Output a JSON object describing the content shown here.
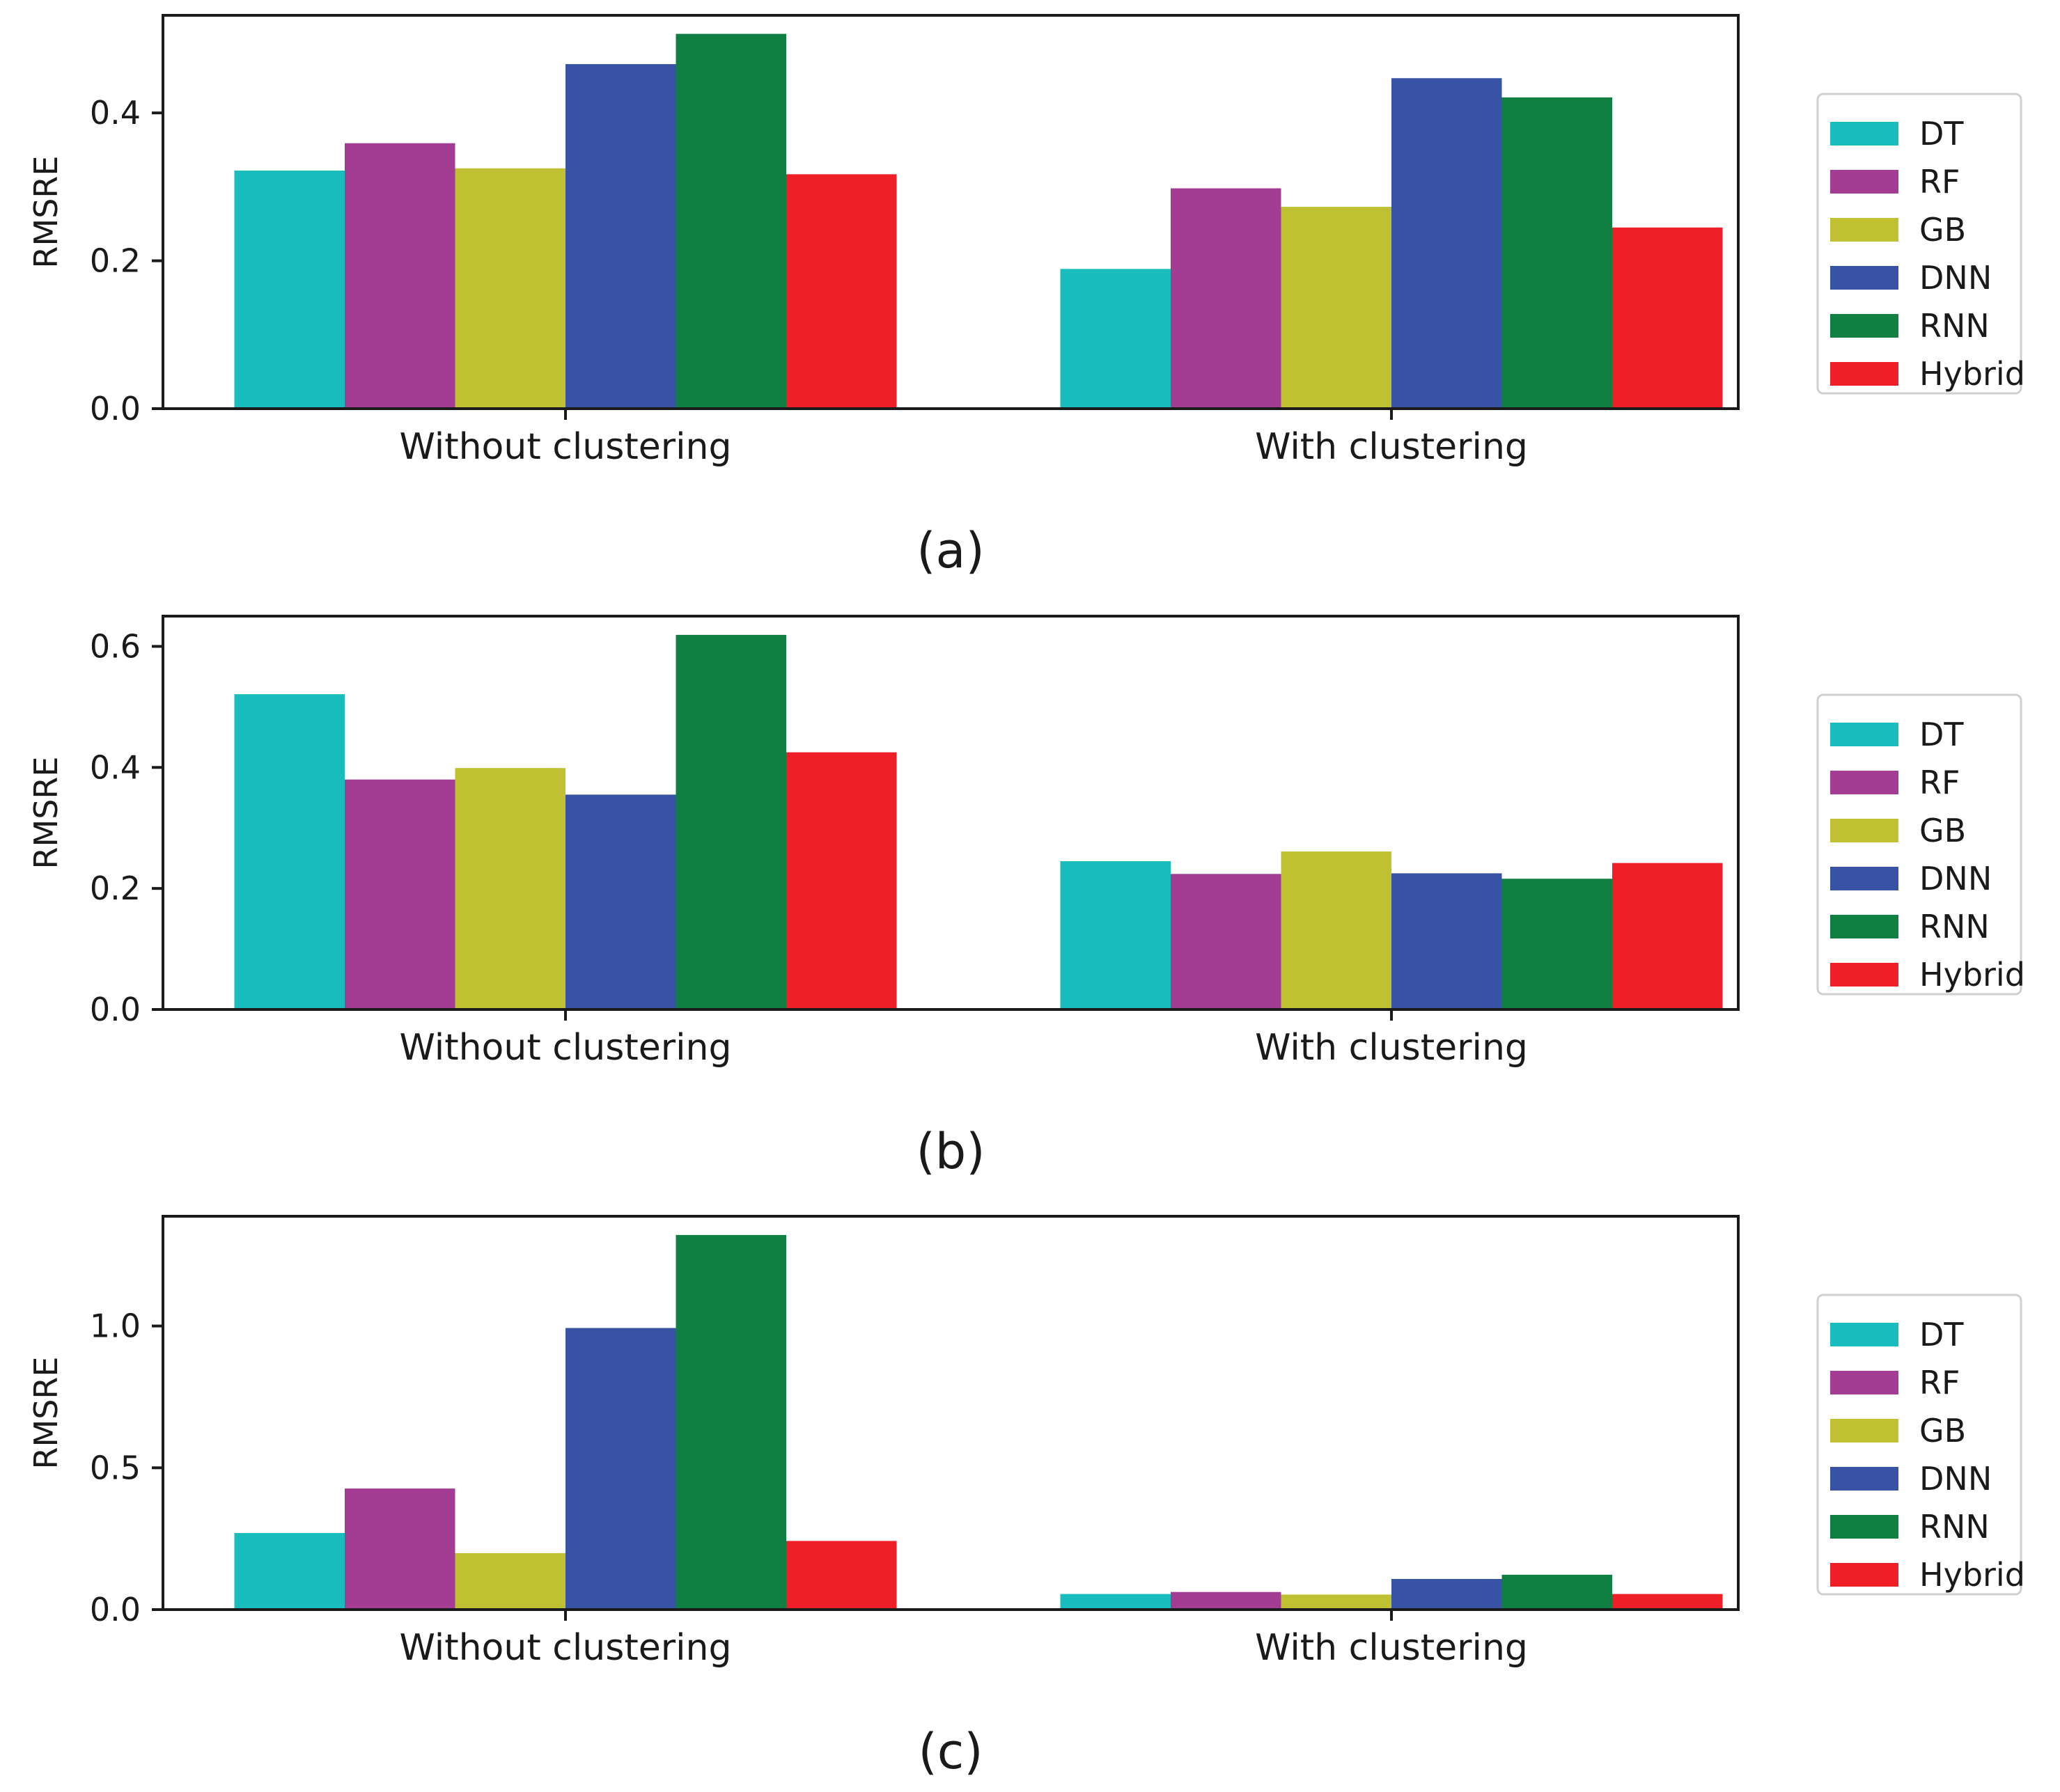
{
  "colors": {
    "DT": "#19bdbd",
    "RF": "#a33d93",
    "GB": "#bfc032",
    "DNN": "#3853a3",
    "RNN": "#0f8041",
    "Hybrid": "#ee1f26"
  },
  "chart_data": [
    {
      "type": "bar",
      "panel_label": "(a)",
      "ylabel": "RMSRE",
      "categories": [
        "Without clustering",
        "With clustering"
      ],
      "ylim": [
        0,
        0.532
      ],
      "yticks": [
        0.0,
        0.2,
        0.4
      ],
      "ytick_labels": [
        "0.0",
        "0.2",
        "0.4"
      ],
      "legend_position": "right",
      "series": [
        {
          "name": "DT",
          "values": [
            0.322,
            0.189
          ]
        },
        {
          "name": "RF",
          "values": [
            0.359,
            0.298
          ]
        },
        {
          "name": "GB",
          "values": [
            0.325,
            0.273
          ]
        },
        {
          "name": "DNN",
          "values": [
            0.466,
            0.447
          ]
        },
        {
          "name": "RNN",
          "values": [
            0.507,
            0.421
          ]
        },
        {
          "name": "Hybrid",
          "values": [
            0.317,
            0.245
          ]
        }
      ]
    },
    {
      "type": "bar",
      "panel_label": "(b)",
      "ylabel": "RMSRE",
      "categories": [
        "Without clustering",
        "With clustering"
      ],
      "ylim": [
        0,
        0.65
      ],
      "yticks": [
        0.0,
        0.2,
        0.4,
        0.6
      ],
      "ytick_labels": [
        "0.0",
        "0.2",
        "0.4",
        "0.6"
      ],
      "legend_position": "right",
      "series": [
        {
          "name": "DT",
          "values": [
            0.521,
            0.245
          ]
        },
        {
          "name": "RF",
          "values": [
            0.38,
            0.224
          ]
        },
        {
          "name": "GB",
          "values": [
            0.399,
            0.261
          ]
        },
        {
          "name": "DNN",
          "values": [
            0.355,
            0.225
          ]
        },
        {
          "name": "RNN",
          "values": [
            0.619,
            0.216
          ]
        },
        {
          "name": "Hybrid",
          "values": [
            0.425,
            0.242
          ]
        }
      ]
    },
    {
      "type": "bar",
      "panel_label": "(c)",
      "ylabel": "RMSRE",
      "categories": [
        "Without clustering",
        "With clustering"
      ],
      "ylim": [
        0,
        1.387
      ],
      "yticks": [
        0.0,
        0.5,
        1.0
      ],
      "ytick_labels": [
        "0.0",
        "0.5",
        "1.0"
      ],
      "legend_position": "right",
      "series": [
        {
          "name": "DT",
          "values": [
            0.27,
            0.055
          ]
        },
        {
          "name": "RF",
          "values": [
            0.427,
            0.062
          ]
        },
        {
          "name": "GB",
          "values": [
            0.199,
            0.053
          ]
        },
        {
          "name": "DNN",
          "values": [
            0.993,
            0.108
          ]
        },
        {
          "name": "RNN",
          "values": [
            1.321,
            0.123
          ]
        },
        {
          "name": "Hybrid",
          "values": [
            0.242,
            0.055
          ]
        }
      ]
    }
  ]
}
